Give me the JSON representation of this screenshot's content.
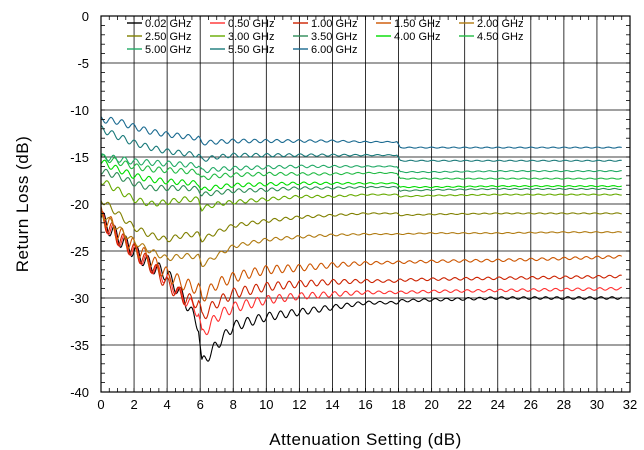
{
  "chart_data": {
    "type": "line",
    "xlabel": "Attenuation Setting (dB)",
    "ylabel": "Return Loss (dB)",
    "xlim": [
      0,
      32
    ],
    "ylim": [
      -40,
      0
    ],
    "x_ticks": [
      0,
      2,
      4,
      6,
      8,
      10,
      12,
      14,
      16,
      18,
      20,
      22,
      24,
      26,
      28,
      30,
      32
    ],
    "y_ticks": [
      0,
      -5,
      -10,
      -15,
      -20,
      -25,
      -30,
      -35,
      -40
    ],
    "x_tick_labels": [
      "0",
      "2",
      "4",
      "6",
      "8",
      "10",
      "12",
      "14",
      "16",
      "18",
      "20",
      "22",
      "24",
      "26",
      "28",
      "30",
      "32"
    ],
    "y_tick_labels": [
      "0",
      "-5",
      "-10",
      "-15",
      "-20",
      "-25",
      "-30",
      "-35",
      "-40"
    ],
    "grid": true,
    "legend_position": "top",
    "x": [
      0,
      1,
      2,
      3,
      4,
      5,
      5.9,
      6.1,
      7,
      8,
      10,
      12,
      14,
      16,
      17.9,
      18.1,
      20,
      24,
      28,
      31.5
    ],
    "series": [
      {
        "name": "0.02 GHz",
        "color": "#000000",
        "values": [
          -21.5,
          -23.5,
          -25,
          -26.5,
          -27.5,
          -30,
          -33,
          -37,
          -35,
          -33,
          -32,
          -31.5,
          -31,
          -30.5,
          -30.5,
          -30.3,
          -30.2,
          -30,
          -30,
          -30
        ]
      },
      {
        "name": "0.50 GHz",
        "color": "#ff3030",
        "values": [
          -21.5,
          -23.5,
          -25,
          -26.5,
          -28,
          -30,
          -31.5,
          -34,
          -32,
          -31,
          -30.2,
          -29.8,
          -29.6,
          -29.4,
          -29.4,
          -29.4,
          -29.3,
          -29.2,
          -29.1,
          -29
        ]
      },
      {
        "name": "1.00 GHz",
        "color": "#cc2200",
        "values": [
          -21.5,
          -23.5,
          -25,
          -26.5,
          -28.5,
          -30,
          -30.5,
          -32,
          -30.5,
          -29.5,
          -28.8,
          -28.5,
          -28.3,
          -28.2,
          -28.2,
          -28.1,
          -28,
          -27.9,
          -27.8,
          -27.7
        ]
      },
      {
        "name": "1.50 GHz",
        "color": "#cc5500",
        "values": [
          -21,
          -23,
          -24.5,
          -26,
          -27.5,
          -28.5,
          -29,
          -30,
          -28.5,
          -27.8,
          -27,
          -26.8,
          -26.5,
          -26.3,
          -26.2,
          -26.2,
          -26.1,
          -26,
          -25.8,
          -25.6
        ]
      },
      {
        "name": "2.00 GHz",
        "color": "#b07a10",
        "values": [
          -21,
          -22.5,
          -24,
          -25,
          -25.8,
          -25.5,
          -25.6,
          -26.5,
          -25.5,
          -24.5,
          -23.8,
          -23.5,
          -23.3,
          -23.2,
          -23.2,
          -23.2,
          -23.1,
          -23.1,
          -23,
          -23
        ]
      },
      {
        "name": "2.50 GHz",
        "color": "#808000",
        "values": [
          -19.5,
          -21,
          -22.5,
          -23.3,
          -23.8,
          -23.3,
          -23.2,
          -23.8,
          -23,
          -22.3,
          -21.8,
          -21.4,
          -21.2,
          -21,
          -21,
          -21.2,
          -21.1,
          -21,
          -21,
          -21
        ]
      },
      {
        "name": "3.00 GHz",
        "color": "#66aa00",
        "values": [
          -17.5,
          -18.5,
          -19.5,
          -20,
          -19.8,
          -19.5,
          -19.5,
          -20.5,
          -20,
          -19.8,
          -19.5,
          -19.2,
          -19.2,
          -19,
          -19,
          -19.2,
          -19.1,
          -19,
          -19,
          -19
        ]
      },
      {
        "name": "3.50 GHz",
        "color": "#2e8b57",
        "values": [
          -16.5,
          -17,
          -17.8,
          -18.3,
          -18.3,
          -18.3,
          -18.4,
          -19,
          -18.8,
          -18.6,
          -18.5,
          -18.3,
          -18.3,
          -18.2,
          -18.2,
          -18.6,
          -18.5,
          -18.4,
          -18.4,
          -18.4
        ]
      },
      {
        "name": "4.00 GHz",
        "color": "#00dd00",
        "values": [
          -15.5,
          -16.3,
          -17,
          -17.4,
          -17.6,
          -17.7,
          -17.8,
          -18.5,
          -18.2,
          -18,
          -17.9,
          -17.8,
          -17.8,
          -17.8,
          -17.8,
          -18.2,
          -18.2,
          -18.1,
          -18.1,
          -18.1
        ]
      },
      {
        "name": "4.50 GHz",
        "color": "#22bb44",
        "values": [
          -15,
          -15.5,
          -16,
          -16.3,
          -16.4,
          -16.5,
          -16.6,
          -17.3,
          -17,
          -16.9,
          -16.8,
          -16.8,
          -16.8,
          -16.7,
          -16.7,
          -17.3,
          -17.3,
          -17.3,
          -17.3,
          -17.3
        ]
      },
      {
        "name": "5.00 GHz",
        "color": "#22aa66",
        "values": [
          -15,
          -15.2,
          -15.5,
          -15.6,
          -15.7,
          -15.8,
          -15.9,
          -16.5,
          -16.3,
          -16.2,
          -16.1,
          -16,
          -16,
          -16,
          -16,
          -16.6,
          -16.6,
          -16.5,
          -16.5,
          -16.5
        ]
      },
      {
        "name": "5.50 GHz",
        "color": "#1a7a7a",
        "values": [
          -12,
          -12.8,
          -13.5,
          -14,
          -14.4,
          -14.6,
          -14.8,
          -15.3,
          -15,
          -14.8,
          -14.8,
          -14.8,
          -14.8,
          -14.8,
          -14.8,
          -15.4,
          -15.4,
          -15.4,
          -15.4,
          -15.4
        ]
      },
      {
        "name": "6.00 GHz",
        "color": "#1a6a90",
        "values": [
          -11,
          -11.2,
          -11.8,
          -12.3,
          -12.6,
          -12.8,
          -13,
          -13.5,
          -13.4,
          -13.3,
          -13.3,
          -13.3,
          -13.3,
          -13.4,
          -13.4,
          -14,
          -14,
          -14,
          -14,
          -14
        ]
      }
    ]
  }
}
